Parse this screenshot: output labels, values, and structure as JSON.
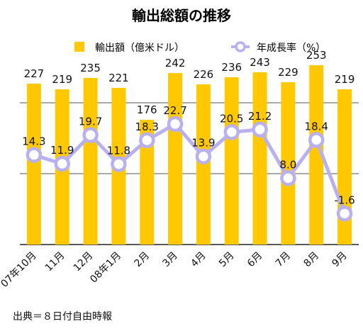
{
  "chart_data": {
    "type": "bar",
    "title": "輸出総額の推移",
    "categories": [
      "07年10月",
      "11月",
      "12月",
      "08年1月",
      "2月",
      "3月",
      "4月",
      "5月",
      "6月",
      "7月",
      "8月",
      "9月"
    ],
    "series": [
      {
        "name": "輸出額（億米ドル）",
        "type": "bar",
        "axis": "left",
        "values": [
          227,
          219,
          235,
          221,
          176,
          242,
          226,
          236,
          243,
          229,
          253,
          219
        ],
        "color": "#FFC800"
      },
      {
        "name": "年成長率（%）",
        "type": "line",
        "axis": "right",
        "values": [
          14.3,
          11.9,
          19.7,
          11.8,
          18.3,
          22.7,
          13.9,
          20.5,
          21.2,
          8.0,
          18.4,
          -1.6
        ],
        "labels": [
          "14.3",
          "11.9",
          "19.7",
          "11.8",
          "18.3",
          "22.7",
          "13.9",
          "20.5",
          "21.2",
          "8.0",
          "18.4",
          "-1.6"
        ],
        "color": "#B8B0F0"
      }
    ],
    "left_ylim": [
      0,
      260
    ],
    "right_ylim": [
      -10,
      40
    ],
    "grid": true,
    "legend_position": "top"
  },
  "source_note": "出典＝８日付自由時報"
}
